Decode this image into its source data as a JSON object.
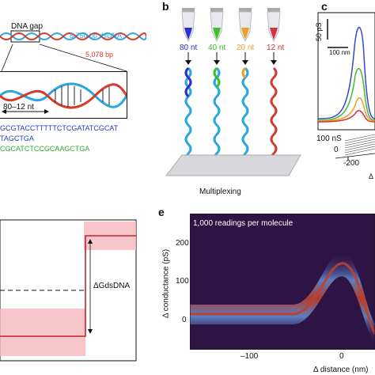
{
  "panel_a": {
    "dna_gap_label": "DNA gap",
    "dsdna_label": "8,750 bp dsDNA",
    "bp_label": "5,078 bp",
    "gap_range_label": "80–12 nt",
    "seq_line1": "GCGTACCTTTTTCTCGATATCGCAT",
    "seq_line2": "TAGCTGA",
    "seq_line3": "CGCATCTCCGCAAGCTGA",
    "colors": {
      "blue_seq": "#1f3fbf",
      "green_seq": "#2eae2e",
      "dsdna": "#2aa7e0",
      "bp": "#d63a2a"
    }
  },
  "panel_b": {
    "letter": "b",
    "tubes": [
      {
        "label": "80 nt",
        "color": "#2b2fd6"
      },
      {
        "label": "40 nt",
        "color": "#3fbf2b"
      },
      {
        "label": "20 nt",
        "color": "#f0a020"
      },
      {
        "label": "12 nt",
        "color": "#d63040"
      }
    ],
    "caption": "Multiplexing"
  },
  "panel_c": {
    "letter": "c",
    "scale_ps": "50 pS",
    "scale_nm": "100 nm",
    "label_100ns": "100 nS",
    "tick_0": "0",
    "tick_m200": "-200",
    "delta_partial": "Δ"
  },
  "panel_d": {
    "delta_label": "ΔGdsDNA"
  },
  "panel_e": {
    "letter": "e",
    "annotation": "1,000 readings per molecule",
    "ylabel": "Δ conductance (pS)",
    "xlabel": "Δ distance (nm)",
    "yticks": [
      "200",
      "100",
      "0"
    ],
    "xticks": [
      "–100",
      "0"
    ]
  }
}
